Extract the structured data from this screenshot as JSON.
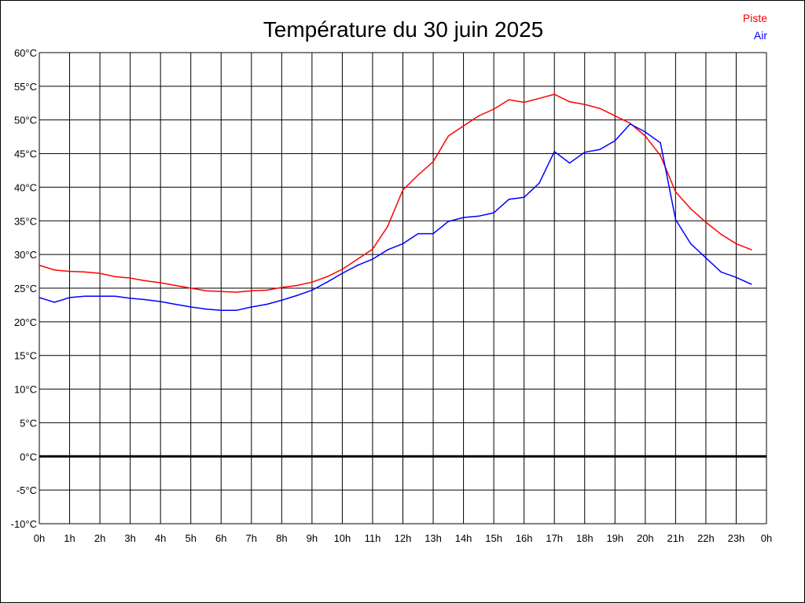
{
  "chart_data": {
    "type": "line",
    "title": "Température du 30 juin 2025",
    "xlabel": "",
    "ylabel": "",
    "ylim": [
      -10,
      60
    ],
    "xlim": [
      0,
      24
    ],
    "grid": true,
    "legend_placement": "top-right",
    "x_tick_labels": [
      "0h",
      "1h",
      "2h",
      "3h",
      "4h",
      "5h",
      "6h",
      "7h",
      "8h",
      "9h",
      "10h",
      "11h",
      "12h",
      "13h",
      "14h",
      "15h",
      "16h",
      "17h",
      "18h",
      "19h",
      "20h",
      "21h",
      "22h",
      "23h",
      "0h"
    ],
    "y_tick_labels": [
      "-10°C",
      "-5°C",
      "0°C",
      "5°C",
      "10°C",
      "15°C",
      "20°C",
      "25°C",
      "30°C",
      "35°C",
      "40°C",
      "45°C",
      "50°C",
      "55°C",
      "60°C"
    ],
    "x": [
      0,
      0.5,
      1,
      1.5,
      2,
      2.5,
      3,
      3.5,
      4,
      4.5,
      5,
      5.5,
      6,
      6.5,
      7,
      7.5,
      8,
      8.5,
      9,
      9.5,
      10,
      10.5,
      11,
      11.5,
      12,
      12.5,
      13,
      13.5,
      14,
      14.5,
      15,
      15.5,
      16,
      16.5,
      17,
      17.5,
      18,
      18.5,
      19,
      19.5,
      20,
      20.5,
      21,
      21.5,
      22,
      22.5,
      23,
      23.5
    ],
    "series": [
      {
        "name": "Piste",
        "color": "#ff0000",
        "values": [
          28.4,
          27.7,
          27.5,
          27.4,
          27.2,
          26.7,
          26.5,
          26.1,
          25.8,
          25.4,
          25.0,
          24.6,
          24.5,
          24.4,
          24.6,
          24.7,
          25.1,
          25.4,
          25.9,
          26.7,
          27.8,
          29.3,
          30.8,
          34.2,
          39.6,
          41.8,
          43.8,
          47.6,
          49.1,
          50.6,
          51.6,
          53.0,
          52.6,
          53.2,
          53.8,
          52.7,
          52.3,
          51.7,
          50.6,
          49.5,
          47.6,
          44.7,
          39.3,
          36.8,
          34.8,
          33.0,
          31.6,
          30.7
        ]
      },
      {
        "name": "Air",
        "color": "#0000ff",
        "values": [
          23.6,
          22.9,
          23.6,
          23.8,
          23.8,
          23.8,
          23.5,
          23.3,
          23.0,
          22.6,
          22.2,
          21.9,
          21.7,
          21.7,
          22.2,
          22.6,
          23.2,
          23.9,
          24.7,
          25.9,
          27.2,
          28.4,
          29.3,
          30.7,
          31.6,
          33.1,
          33.1,
          34.9,
          35.5,
          35.7,
          36.2,
          38.2,
          38.5,
          40.6,
          45.3,
          43.6,
          45.2,
          45.6,
          46.9,
          49.4,
          48.2,
          46.6,
          35.2,
          31.6,
          29.5,
          27.4,
          26.6,
          25.6
        ]
      }
    ]
  }
}
